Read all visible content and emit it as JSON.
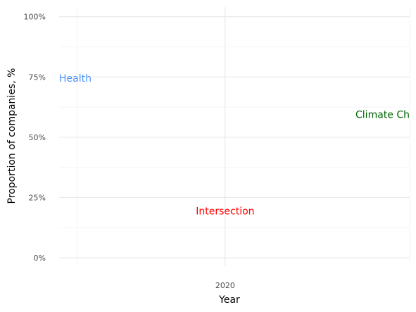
{
  "chart_data": {
    "type": "line",
    "xlabel": "Year",
    "ylabel": "Proportion of companies, %",
    "x_ticks": [
      2020
    ],
    "x_tick_labels": [
      "2020"
    ],
    "xlim": [
      2019.1,
      2021.0
    ],
    "y_ticks": [
      0,
      25,
      50,
      75,
      100
    ],
    "y_tick_labels": [
      "0%",
      "25%",
      "50%",
      "75%",
      "100%"
    ],
    "ylim": [
      -3.5,
      104
    ],
    "grid": true,
    "series_labels": [
      {
        "text": "Health",
        "x": 2019.1,
        "y": 74.5,
        "color": "#4d94ff",
        "anchor": "start"
      },
      {
        "text": "Intersection",
        "x": 2020.0,
        "y": 19.5,
        "color": "#ff0000",
        "anchor": "middle"
      },
      {
        "text": "Climate Ch",
        "x": 2021.0,
        "y": 59.5,
        "color": "#006400",
        "anchor": "end"
      }
    ]
  }
}
